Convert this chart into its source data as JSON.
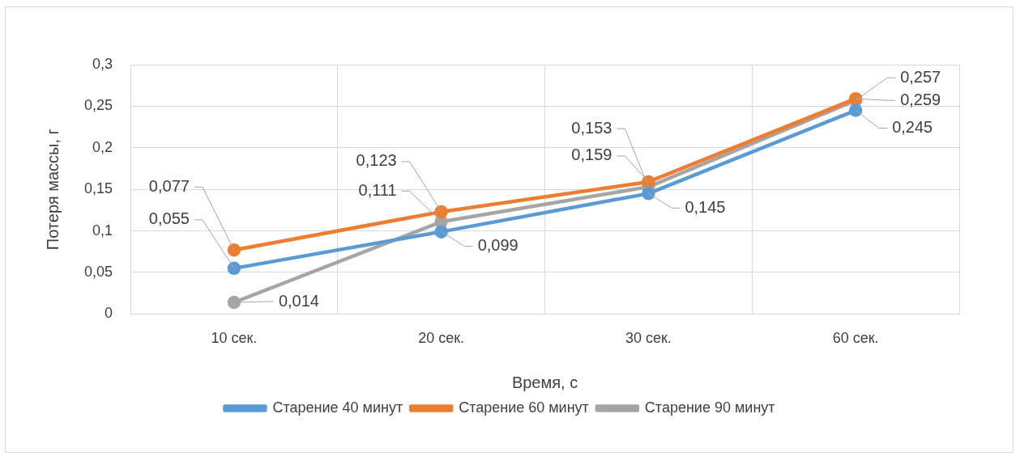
{
  "chart_data": {
    "type": "line",
    "xlabel": "Время, с",
    "ylabel": "Потеря массы, г",
    "categories": [
      "10 сек.",
      "20 сек.",
      "30 сек.",
      "60 сек."
    ],
    "series": [
      {
        "name": "Старение 40 минут",
        "color": "#5b9bd5",
        "values": [
          0.055,
          0.099,
          0.145,
          0.245
        ],
        "value_labels": [
          "0,055",
          "0,099",
          "0,145",
          "0,245"
        ]
      },
      {
        "name": "Старение 60 минут",
        "color": "#ed7d31",
        "values": [
          0.077,
          0.123,
          0.159,
          0.259
        ],
        "value_labels": [
          "0,077",
          "0,123",
          "0,159",
          "0,259"
        ]
      },
      {
        "name": "Старение 90 минут",
        "color": "#a5a5a5",
        "values": [
          0.014,
          0.111,
          0.153,
          0.257
        ],
        "value_labels": [
          "0,014",
          "0,111",
          "0,153",
          "0,257"
        ]
      }
    ],
    "ylim": [
      0,
      0.3
    ],
    "yticks": [
      0,
      {
        "value": 0.05,
        "label": "0,05"
      },
      {
        "value": 0.1,
        "label": "0,1"
      },
      {
        "value": 0.15,
        "label": "0,15"
      },
      {
        "value": 0.2,
        "label": "0,2"
      },
      {
        "value": 0.25,
        "label": "0,25"
      },
      {
        "value": 0.3,
        "label": "0,3"
      }
    ],
    "grid": true,
    "legend": "bottom",
    "marker": "circle",
    "line_style": "solid"
  }
}
